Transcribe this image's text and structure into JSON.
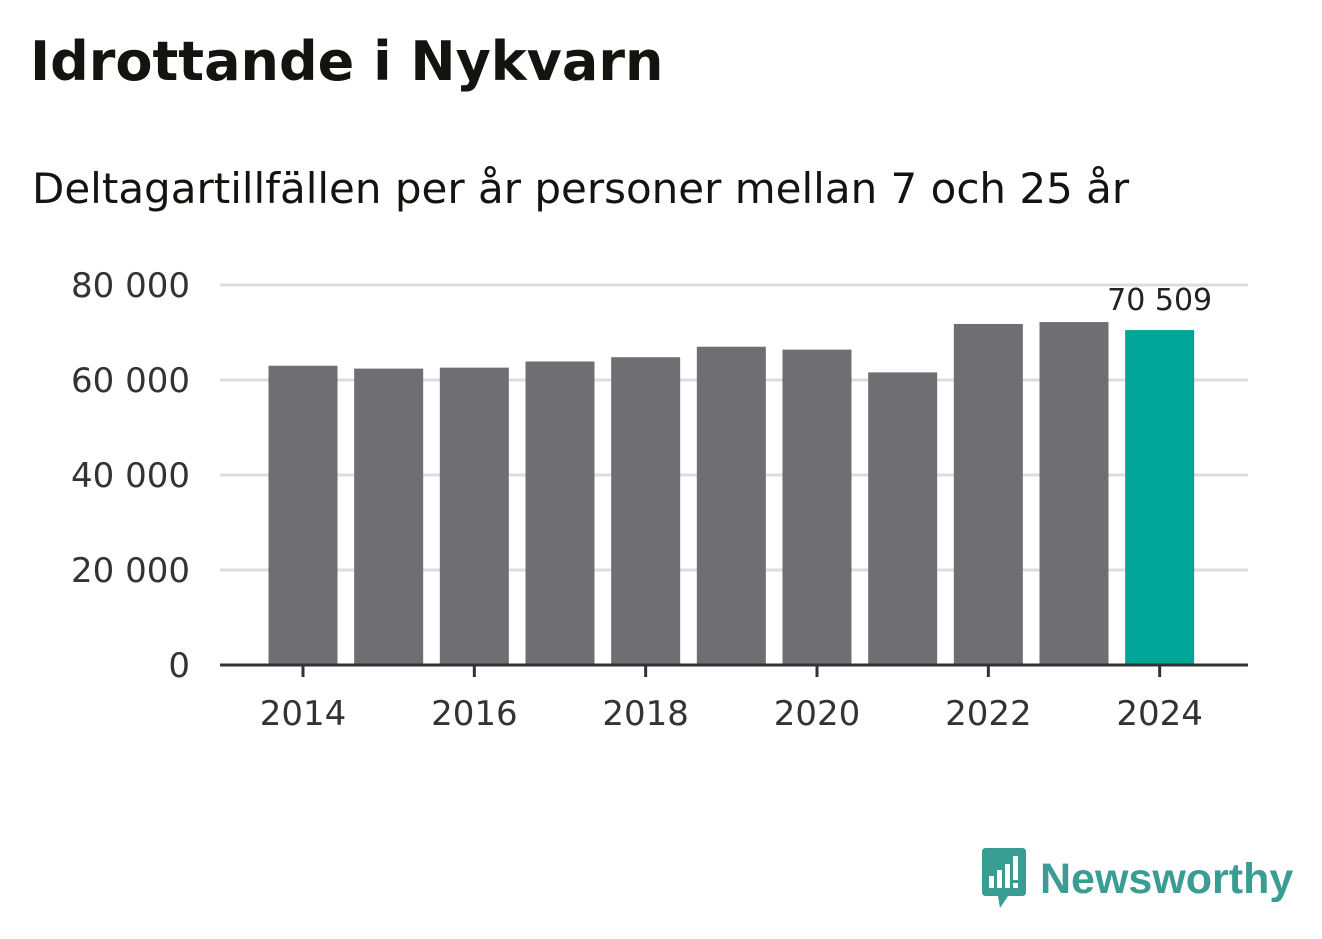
{
  "chart_data": {
    "type": "bar",
    "title": "Idrottande i Nykvarn",
    "subtitle": "Deltagartillfällen per år personer mellan 7 och 25 år",
    "categories": [
      2014,
      2015,
      2016,
      2017,
      2018,
      2019,
      2020,
      2021,
      2022,
      2023,
      2024
    ],
    "values": [
      63000,
      62400,
      62600,
      63900,
      64800,
      67000,
      66400,
      61600,
      71800,
      72200,
      70509
    ],
    "xlabel": "",
    "ylabel": "",
    "ylim": [
      0,
      80000
    ],
    "yticks": [
      0,
      20000,
      40000,
      60000,
      80000
    ],
    "ytick_labels": [
      "0",
      "20 000",
      "40 000",
      "60 000",
      "80 000"
    ],
    "xticks": [
      2014,
      2016,
      2018,
      2020,
      2022,
      2024
    ],
    "xtick_labels": [
      "2014",
      "2016",
      "2018",
      "2020",
      "2022",
      "2024"
    ],
    "annotations": [
      {
        "category": 2024,
        "label": "70 509"
      }
    ],
    "highlight_category": 2024,
    "grid": true,
    "colors": {
      "bar": "#6f6e73",
      "highlight": "#00a597",
      "grid": "#dddddd",
      "axis": "#333333"
    }
  },
  "brand": {
    "name": "Newsworthy",
    "icon": "newsworthy-logo-icon",
    "color": "#3a9d94"
  }
}
